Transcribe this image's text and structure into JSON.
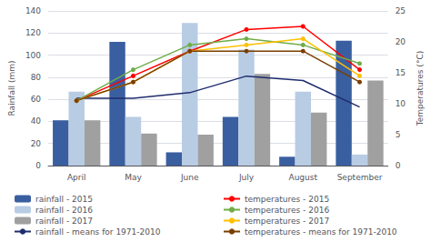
{
  "chart_data": {
    "type": "bar",
    "categories": [
      "April",
      "May",
      "June",
      "July",
      "August",
      "September"
    ],
    "ylabel": "Rainfall (mm)",
    "y2label": "Temperatures (°C)",
    "ylim": [
      0,
      140
    ],
    "yticks": [
      0,
      20,
      40,
      60,
      80,
      100,
      120,
      140
    ],
    "y2lim": [
      0,
      25
    ],
    "y2ticks": [
      0,
      5,
      10,
      15,
      20,
      25
    ],
    "grid": true,
    "legend": "bottom",
    "series": [
      {
        "name": "rainfall - 2015",
        "type": "bar",
        "color": "#3a5fa0",
        "values": [
          41,
          112,
          12,
          44,
          8,
          113
        ]
      },
      {
        "name": "rainfall - 2016",
        "type": "bar",
        "color": "#b8cce4",
        "values": [
          67,
          44,
          129,
          105,
          67,
          10
        ]
      },
      {
        "name": "rainfall - 2017",
        "type": "bar",
        "color": "#a0a0a0",
        "values": [
          41,
          29,
          28,
          83,
          48,
          77
        ]
      },
      {
        "name": "rainfall - means for 1971-2010",
        "type": "line",
        "color": "#1f2d6e",
        "values": [
          61,
          61,
          66,
          81,
          77,
          53
        ]
      },
      {
        "name": "temperatures - 2015",
        "type": "line",
        "axis": "y2",
        "marker": "circle",
        "color": "#ff0000",
        "values": [
          10.5,
          14.5,
          18.5,
          22.0,
          22.5,
          15.5
        ]
      },
      {
        "name": "temperatures - 2016",
        "type": "line",
        "axis": "y2",
        "marker": "circle",
        "color": "#70ad47",
        "values": [
          10.5,
          15.5,
          19.5,
          20.5,
          19.5,
          16.5
        ]
      },
      {
        "name": "temperatures - 2017",
        "type": "line",
        "axis": "y2",
        "marker": "circle",
        "color": "#ffc000",
        "values": [
          10.5,
          13.5,
          18.5,
          19.5,
          20.5,
          14.5
        ]
      },
      {
        "name": "temperatures - means for 1971-2010",
        "type": "line",
        "axis": "y2",
        "marker": "circle",
        "color": "#7b3f00",
        "values": [
          10.5,
          13.5,
          18.5,
          18.5,
          18.5,
          13.5
        ]
      }
    ]
  }
}
